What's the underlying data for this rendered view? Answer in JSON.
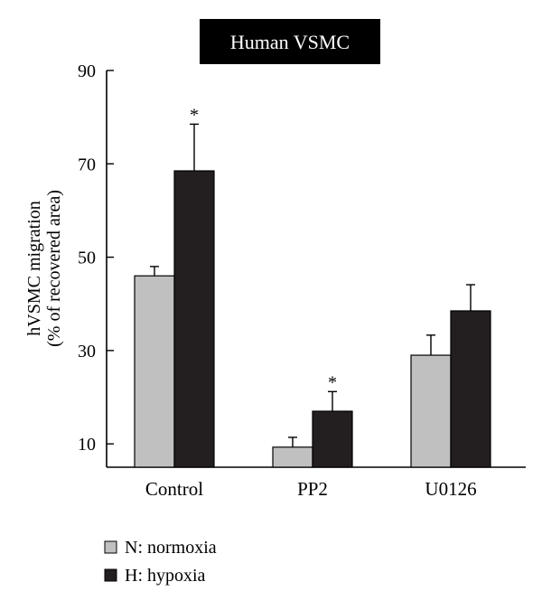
{
  "chart_data": {
    "type": "bar",
    "title": "Human VSMC",
    "ylabel_line1": "hVSMC migration",
    "ylabel_line2": "(% of recovered area)",
    "categories": [
      "Control",
      "PP2",
      "U0126"
    ],
    "ylim": [
      5,
      90
    ],
    "yticks": [
      10,
      30,
      50,
      70,
      90
    ],
    "series": [
      {
        "name": "N: normoxia",
        "color": "#c0c0c0",
        "values": [
          46,
          9.3,
          29
        ],
        "errors": [
          2,
          2.1,
          4.3
        ],
        "significance": [
          "",
          "",
          ""
        ]
      },
      {
        "name": "H: hypoxia",
        "color": "#231f20",
        "values": [
          68.5,
          17,
          38.5
        ],
        "errors": [
          10,
          4.2,
          5.6
        ],
        "significance": [
          "*",
          "*",
          ""
        ]
      }
    ],
    "legend_position": "bottom-left",
    "grid": false
  }
}
